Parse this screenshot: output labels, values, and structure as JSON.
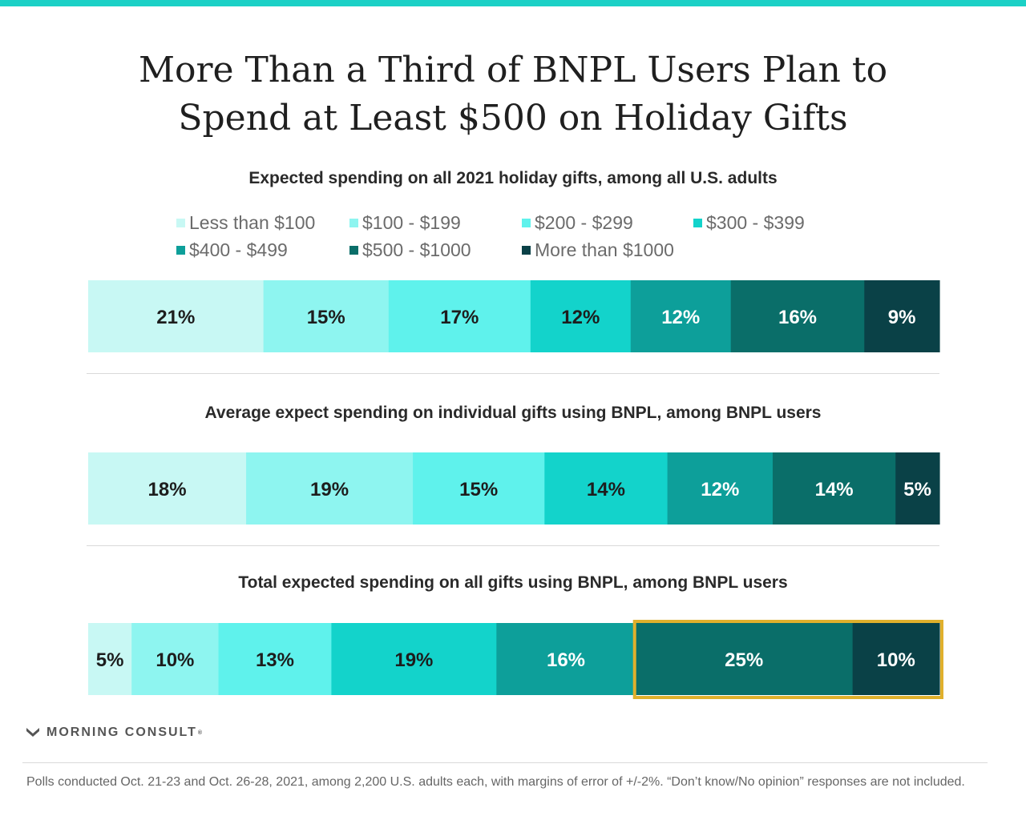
{
  "title_lines": [
    "More Than a Third of BNPL Users Plan to",
    "Spend at Least $500 on Holiday Gifts"
  ],
  "legend": [
    {
      "label": "Less than $100",
      "color": "#c8f8f4"
    },
    {
      "label": "$100 - $199",
      "color": "#8ef5f0"
    },
    {
      "label": "$200 - $299",
      "color": "#5ff2ec"
    },
    {
      "label": "$300 - $399",
      "color": "#13d3cb"
    },
    {
      "label": "$400 - $499",
      "color": "#0d9f9a"
    },
    {
      "label": "$500 - $1000",
      "color": "#0a6e69"
    },
    {
      "label": "More than $1000",
      "color": "#0a4147"
    }
  ],
  "highlight_color": "#e0b02c",
  "chart_data": [
    {
      "type": "bar",
      "subtype": "stacked-100",
      "title": "Expected spending on all 2021 holiday gifts, among all U.S. adults",
      "series": [
        {
          "name": "Less than $100",
          "value": 21
        },
        {
          "name": "$100 - $199",
          "value": 15
        },
        {
          "name": "$200 - $299",
          "value": 17
        },
        {
          "name": "$300 - $399",
          "value": 12
        },
        {
          "name": "$400 - $499",
          "value": 12
        },
        {
          "name": "$500 - $1000",
          "value": 16
        },
        {
          "name": "More than $1000",
          "value": 9
        }
      ],
      "labels": [
        "21%",
        "15%",
        "17%",
        "12%",
        "12%",
        "16%",
        "9%"
      ],
      "highlight_from_index": null
    },
    {
      "type": "bar",
      "subtype": "stacked-100",
      "title": "Average expect spending on individual gifts using BNPL, among BNPL users",
      "series": [
        {
          "name": "Less than $100",
          "value": 18
        },
        {
          "name": "$100 - $199",
          "value": 19
        },
        {
          "name": "$200 - $299",
          "value": 15
        },
        {
          "name": "$300 - $399",
          "value": 14
        },
        {
          "name": "$400 - $499",
          "value": 12
        },
        {
          "name": "$500 - $1000",
          "value": 14
        },
        {
          "name": "More than $1000",
          "value": 5
        }
      ],
      "labels": [
        "18%",
        "19%",
        "15%",
        "14%",
        "12%",
        "14%",
        "5%"
      ],
      "highlight_from_index": null
    },
    {
      "type": "bar",
      "subtype": "stacked-100",
      "title": "Total expected spending on all gifts using BNPL, among BNPL users",
      "series": [
        {
          "name": "Less than $100",
          "value": 5
        },
        {
          "name": "$100 - $199",
          "value": 10
        },
        {
          "name": "$200 - $299",
          "value": 13
        },
        {
          "name": "$300 - $399",
          "value": 19
        },
        {
          "name": "$400 - $499",
          "value": 16
        },
        {
          "name": "$500 - $1000",
          "value": 25
        },
        {
          "name": "More than $1000",
          "value": 10
        }
      ],
      "labels": [
        "5%",
        "10%",
        "13%",
        "19%",
        "16%",
        "25%",
        "10%"
      ],
      "highlight_from_index": 5
    }
  ],
  "brand": {
    "name": "MORNING CONSULT",
    "mark": "®"
  },
  "footnote": "Polls conducted Oct. 21-23 and Oct. 26-28, 2021, among 2,200 U.S. adults each, with margins of error of +/-2%. “Don’t know/No opinion” responses are not included."
}
